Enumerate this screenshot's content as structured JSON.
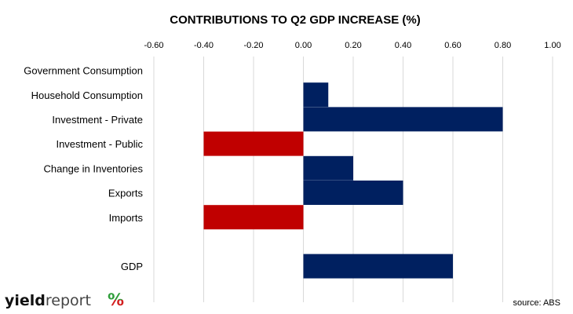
{
  "chart_data": {
    "type": "bar",
    "orientation": "horizontal",
    "title": "CONTRIBUTIONS TO Q2 GDP INCREASE (%)",
    "categories": [
      "Government Consumption",
      "Household Consumption",
      "Investment - Private",
      "Investment - Public",
      "Change in Inventories",
      "Exports",
      "Imports",
      "",
      "GDP"
    ],
    "values": [
      0.0,
      0.1,
      0.8,
      -0.4,
      0.2,
      0.4,
      -0.4,
      null,
      0.6
    ],
    "xlim": [
      -0.6,
      1.0
    ],
    "xticks": [
      "-0.60",
      "-0.40",
      "-0.20",
      "0.00",
      "0.20",
      "0.40",
      "0.60",
      "0.80",
      "1.00"
    ],
    "xtick_values": [
      -0.6,
      -0.4,
      -0.2,
      0.0,
      0.2,
      0.4,
      0.6,
      0.8,
      1.0
    ],
    "x_axis_position": "top",
    "grid": "vertical",
    "legend": "none",
    "colors": {
      "positive": "#002060",
      "negative": "#c00000",
      "grid": "#d9d9d9"
    }
  },
  "source": "source: ABS",
  "logo": {
    "text_bold": "yield",
    "text_regular": "report",
    "symbol": "%",
    "colors": {
      "green": "#2e9e3a",
      "red": "#d21f1f"
    }
  }
}
